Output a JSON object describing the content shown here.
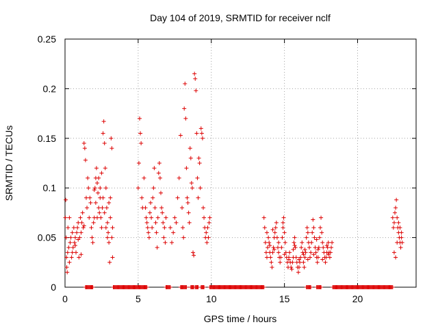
{
  "chart_data": {
    "type": "scatter",
    "title": "Day 104 of 2019, SRMTID for receiver nclf",
    "xlabel": "GPS time / hours",
    "ylabel": "SRMTID / TECUs",
    "xlim": [
      0,
      24
    ],
    "ylim": [
      0,
      0.25
    ],
    "grid": true,
    "marker": "+",
    "color": "#dd0000",
    "x_ticks": [
      0,
      5,
      10,
      15,
      20
    ],
    "x_tick_labels": [
      "0",
      "5",
      "10",
      "15",
      "20"
    ],
    "y_ticks": [
      0,
      0.05,
      0.1,
      0.15,
      0.2,
      0.25
    ],
    "y_tick_labels": [
      "0",
      "0.05",
      "0.1",
      "0.15",
      "0.2",
      "0.25"
    ],
    "series": [
      {
        "name": "SRMTID",
        "points": [
          [
            0.02,
            0.07
          ],
          [
            0.05,
            0.088
          ],
          [
            0.08,
            0.05
          ],
          [
            0.1,
            0.03
          ],
          [
            0.12,
            0.02
          ],
          [
            0.15,
            0.015
          ],
          [
            0.18,
            0.035
          ],
          [
            0.2,
            0.06
          ],
          [
            0.25,
            0.04
          ],
          [
            0.3,
            0.025
          ],
          [
            0.35,
            0.045
          ],
          [
            0.4,
            0.05
          ],
          [
            0.45,
            0.03
          ],
          [
            0.5,
            0.055
          ],
          [
            0.55,
            0.04
          ],
          [
            0.6,
            0.06
          ],
          [
            0.65,
            0.045
          ],
          [
            0.7,
            0.05
          ],
          [
            0.75,
            0.035
          ],
          [
            0.8,
            0.055
          ],
          [
            0.85,
            0.06
          ],
          [
            0.9,
            0.065
          ],
          [
            0.95,
            0.03
          ],
          [
            1.0,
            0.05
          ],
          [
            1.05,
            0.07
          ],
          [
            1.1,
            0.055
          ],
          [
            1.15,
            0.065
          ],
          [
            1.2,
            0.075
          ],
          [
            1.25,
            0.06
          ],
          [
            1.3,
            0.145
          ],
          [
            1.35,
            0.14
          ],
          [
            1.4,
            0.128
          ],
          [
            1.45,
            0.09
          ],
          [
            1.5,
            0.08
          ],
          [
            1.55,
            0.11
          ],
          [
            1.6,
            0.1
          ],
          [
            1.65,
            0.07
          ],
          [
            1.7,
            0.09
          ],
          [
            1.75,
            0.085
          ],
          [
            1.8,
            0.06
          ],
          [
            1.85,
            0.05
          ],
          [
            1.9,
            0.045
          ],
          [
            1.95,
            0.065
          ],
          [
            2.0,
            0.07
          ],
          [
            2.05,
            0.1
          ],
          [
            2.1,
            0.11
          ],
          [
            2.15,
            0.12
          ],
          [
            2.2,
            0.105
          ],
          [
            2.25,
            0.095
          ],
          [
            2.3,
            0.08
          ],
          [
            2.35,
            0.075
          ],
          [
            2.4,
            0.09
          ],
          [
            2.45,
            0.07
          ],
          [
            2.5,
            0.06
          ],
          [
            2.55,
            0.08
          ],
          [
            2.6,
            0.155
          ],
          [
            2.65,
            0.167
          ],
          [
            2.7,
            0.145
          ],
          [
            2.75,
            0.12
          ],
          [
            2.8,
            0.1
          ],
          [
            2.85,
            0.08
          ],
          [
            2.9,
            0.065
          ],
          [
            2.95,
            0.055
          ],
          [
            3.0,
            0.045
          ],
          [
            3.05,
            0.025
          ],
          [
            3.1,
            0.09
          ],
          [
            3.15,
            0.15
          ],
          [
            3.2,
            0.14
          ],
          [
            3.25,
            0.03
          ],
          [
            2.0,
            0.098
          ],
          [
            2.1,
            0.085
          ],
          [
            2.2,
            0.07
          ],
          [
            2.3,
            0.11
          ],
          [
            2.4,
            0.1
          ],
          [
            2.5,
            0.115
          ],
          [
            2.6,
            0.09
          ],
          [
            2.7,
            0.075
          ],
          [
            2.8,
            0.06
          ],
          [
            2.9,
            0.05
          ],
          [
            3.0,
            0.085
          ],
          [
            3.1,
            0.07
          ],
          [
            3.2,
            0.05
          ],
          [
            3.25,
            0.06
          ],
          [
            0.3,
            0.07
          ],
          [
            0.5,
            0.035
          ],
          [
            0.7,
            0.042
          ],
          [
            0.9,
            0.048
          ],
          [
            1.1,
            0.033
          ],
          [
            1.3,
            0.062
          ],
          [
            5.0,
            0.1
          ],
          [
            5.05,
            0.125
          ],
          [
            5.1,
            0.17
          ],
          [
            5.15,
            0.155
          ],
          [
            5.2,
            0.145
          ],
          [
            5.25,
            0.09
          ],
          [
            5.3,
            0.08
          ],
          [
            5.4,
            0.11
          ],
          [
            5.5,
            0.08
          ],
          [
            5.55,
            0.07
          ],
          [
            5.6,
            0.065
          ],
          [
            5.65,
            0.06
          ],
          [
            5.7,
            0.055
          ],
          [
            5.75,
            0.05
          ],
          [
            5.8,
            0.075
          ],
          [
            5.85,
            0.085
          ],
          [
            5.9,
            0.07
          ],
          [
            5.95,
            0.06
          ],
          [
            6.0,
            0.09
          ],
          [
            6.05,
            0.1
          ],
          [
            6.1,
            0.12
          ],
          [
            6.15,
            0.08
          ],
          [
            6.2,
            0.065
          ],
          [
            6.25,
            0.055
          ],
          [
            6.3,
            0.04
          ],
          [
            6.35,
            0.07
          ],
          [
            6.4,
            0.115
          ],
          [
            6.45,
            0.125
          ],
          [
            6.5,
            0.11
          ],
          [
            6.55,
            0.095
          ],
          [
            6.6,
            0.08
          ],
          [
            6.65,
            0.075
          ],
          [
            6.7,
            0.065
          ],
          [
            6.75,
            0.05
          ],
          [
            6.8,
            0.06
          ],
          [
            6.85,
            0.045
          ],
          [
            6.9,
            0.07
          ],
          [
            7.2,
            0.06
          ],
          [
            7.3,
            0.045
          ],
          [
            7.4,
            0.055
          ],
          [
            7.5,
            0.07
          ],
          [
            7.6,
            0.065
          ],
          [
            7.7,
            0.09
          ],
          [
            7.8,
            0.11
          ],
          [
            7.9,
            0.153
          ],
          [
            8.0,
            0.08
          ],
          [
            8.05,
            0.06
          ],
          [
            8.1,
            0.05
          ],
          [
            8.15,
            0.18
          ],
          [
            8.2,
            0.205
          ],
          [
            8.25,
            0.17
          ],
          [
            8.3,
            0.12
          ],
          [
            8.35,
            0.09
          ],
          [
            8.4,
            0.085
          ],
          [
            8.45,
            0.075
          ],
          [
            8.5,
            0.065
          ],
          [
            8.55,
            0.14
          ],
          [
            8.6,
            0.13
          ],
          [
            8.65,
            0.105
          ],
          [
            8.7,
            0.1
          ],
          [
            8.75,
            0.035
          ],
          [
            8.8,
            0.032
          ],
          [
            8.85,
            0.215
          ],
          [
            8.9,
            0.21
          ],
          [
            8.95,
            0.198
          ],
          [
            9.0,
            0.155
          ],
          [
            9.05,
            0.11
          ],
          [
            9.1,
            0.09
          ],
          [
            9.15,
            0.13
          ],
          [
            9.2,
            0.125
          ],
          [
            9.25,
            0.1
          ],
          [
            9.3,
            0.16
          ],
          [
            9.35,
            0.155
          ],
          [
            9.4,
            0.15
          ],
          [
            9.45,
            0.08
          ],
          [
            9.5,
            0.07
          ],
          [
            9.55,
            0.06
          ],
          [
            9.6,
            0.05
          ],
          [
            9.65,
            0.055
          ],
          [
            9.7,
            0.045
          ],
          [
            9.75,
            0.06
          ],
          [
            9.8,
            0.05
          ],
          [
            9.85,
            0.065
          ],
          [
            9.9,
            0.07
          ],
          [
            13.6,
            0.07
          ],
          [
            13.65,
            0.06
          ],
          [
            13.7,
            0.045
          ],
          [
            13.75,
            0.035
          ],
          [
            13.8,
            0.03
          ],
          [
            13.85,
            0.04
          ],
          [
            13.9,
            0.05
          ],
          [
            13.95,
            0.045
          ],
          [
            14.0,
            0.035
          ],
          [
            14.05,
            0.03
          ],
          [
            14.1,
            0.025
          ],
          [
            14.15,
            0.02
          ],
          [
            14.2,
            0.035
          ],
          [
            14.25,
            0.04
          ],
          [
            14.3,
            0.05
          ],
          [
            14.35,
            0.055
          ],
          [
            14.4,
            0.06
          ],
          [
            14.45,
            0.065
          ],
          [
            14.5,
            0.05
          ],
          [
            14.55,
            0.04
          ],
          [
            14.6,
            0.035
          ],
          [
            14.65,
            0.03
          ],
          [
            14.7,
            0.025
          ],
          [
            14.75,
            0.03
          ],
          [
            14.8,
            0.04
          ],
          [
            14.85,
            0.05
          ],
          [
            14.9,
            0.065
          ],
          [
            14.95,
            0.07
          ],
          [
            15.0,
            0.055
          ],
          [
            15.05,
            0.045
          ],
          [
            15.1,
            0.035
          ],
          [
            15.15,
            0.03
          ],
          [
            15.2,
            0.025
          ],
          [
            15.25,
            0.02
          ],
          [
            15.3,
            0.03
          ],
          [
            15.35,
            0.035
          ],
          [
            15.4,
            0.025
          ],
          [
            15.45,
            0.02
          ],
          [
            15.5,
            0.018
          ],
          [
            15.55,
            0.025
          ],
          [
            15.6,
            0.03
          ],
          [
            15.65,
            0.045
          ],
          [
            15.7,
            0.05
          ],
          [
            15.75,
            0.04
          ],
          [
            15.8,
            0.03
          ],
          [
            15.85,
            0.025
          ],
          [
            15.9,
            0.02
          ],
          [
            15.95,
            0.015
          ],
          [
            16.0,
            0.02
          ],
          [
            16.05,
            0.025
          ],
          [
            16.1,
            0.03
          ],
          [
            16.15,
            0.04
          ],
          [
            16.2,
            0.045
          ],
          [
            16.25,
            0.035
          ],
          [
            16.3,
            0.025
          ],
          [
            16.35,
            0.02
          ],
          [
            16.4,
            0.03
          ],
          [
            16.45,
            0.035
          ],
          [
            16.5,
            0.05
          ],
          [
            16.55,
            0.06
          ],
          [
            16.6,
            0.055
          ],
          [
            16.65,
            0.045
          ],
          [
            16.7,
            0.04
          ],
          [
            16.75,
            0.03
          ],
          [
            16.8,
            0.035
          ],
          [
            16.85,
            0.045
          ],
          [
            16.9,
            0.055
          ],
          [
            16.95,
            0.068
          ],
          [
            17.0,
            0.06
          ],
          [
            17.05,
            0.05
          ],
          [
            17.1,
            0.04
          ],
          [
            17.15,
            0.035
          ],
          [
            17.2,
            0.03
          ],
          [
            17.25,
            0.025
          ],
          [
            17.3,
            0.03
          ],
          [
            17.35,
            0.04
          ],
          [
            17.4,
            0.05
          ],
          [
            17.45,
            0.06
          ],
          [
            17.5,
            0.07
          ],
          [
            17.55,
            0.055
          ],
          [
            17.6,
            0.045
          ],
          [
            17.65,
            0.04
          ],
          [
            17.7,
            0.035
          ],
          [
            17.75,
            0.03
          ],
          [
            17.8,
            0.025
          ],
          [
            17.85,
            0.03
          ],
          [
            17.9,
            0.035
          ],
          [
            17.95,
            0.04
          ],
          [
            18.0,
            0.045
          ],
          [
            18.05,
            0.035
          ],
          [
            18.1,
            0.03
          ],
          [
            18.15,
            0.035
          ],
          [
            18.2,
            0.04
          ],
          [
            18.25,
            0.045
          ],
          [
            14.0,
            0.042
          ],
          [
            14.3,
            0.038
          ],
          [
            14.6,
            0.045
          ],
          [
            15.0,
            0.033
          ],
          [
            15.3,
            0.028
          ],
          [
            15.6,
            0.038
          ],
          [
            16.0,
            0.028
          ],
          [
            16.3,
            0.033
          ],
          [
            16.6,
            0.028
          ],
          [
            17.0,
            0.033
          ],
          [
            17.3,
            0.038
          ],
          [
            17.6,
            0.028
          ],
          [
            18.0,
            0.033
          ],
          [
            13.8,
            0.055
          ],
          [
            14.2,
            0.058
          ],
          [
            14.9,
            0.06
          ],
          [
            15.7,
            0.042
          ],
          [
            16.4,
            0.038
          ],
          [
            17.2,
            0.048
          ],
          [
            17.9,
            0.042
          ],
          [
            22.4,
            0.07
          ],
          [
            22.45,
            0.06
          ],
          [
            22.5,
            0.065
          ],
          [
            22.55,
            0.075
          ],
          [
            22.6,
            0.08
          ],
          [
            22.65,
            0.088
          ],
          [
            22.7,
            0.07
          ],
          [
            22.75,
            0.06
          ],
          [
            22.8,
            0.055
          ],
          [
            22.85,
            0.05
          ],
          [
            22.9,
            0.045
          ],
          [
            22.95,
            0.04
          ],
          [
            23.0,
            0.055
          ],
          [
            23.05,
            0.045
          ],
          [
            22.5,
            0.035
          ],
          [
            22.6,
            0.03
          ],
          [
            22.7,
            0.045
          ],
          [
            22.8,
            0.065
          ],
          [
            22.9,
            0.06
          ],
          [
            23.0,
            0.05
          ]
        ],
        "zero_bands": [
          [
            1.4,
            1.9
          ],
          [
            3.3,
            5.6
          ],
          [
            6.9,
            7.2
          ],
          [
            7.9,
            8.3
          ],
          [
            8.6,
            8.8
          ],
          [
            8.9,
            9.1
          ],
          [
            9.3,
            9.5
          ],
          [
            9.9,
            13.6
          ],
          [
            16.5,
            16.8
          ],
          [
            17.2,
            17.5
          ],
          [
            18.3,
            22.4
          ]
        ]
      }
    ]
  }
}
